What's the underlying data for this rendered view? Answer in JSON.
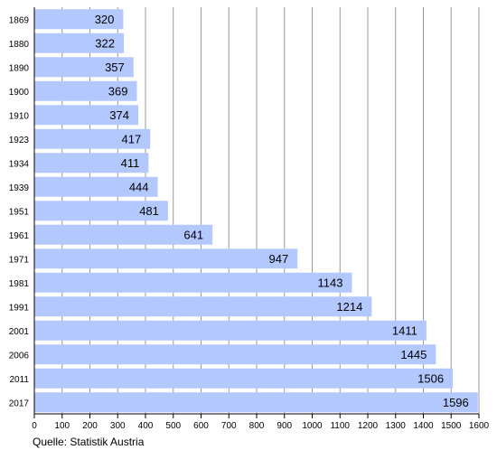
{
  "chart_data": {
    "type": "bar",
    "orientation": "horizontal",
    "categories": [
      "1869",
      "1880",
      "1890",
      "1900",
      "1910",
      "1923",
      "1934",
      "1939",
      "1951",
      "1961",
      "1971",
      "1981",
      "1991",
      "2001",
      "2006",
      "2011",
      "2017"
    ],
    "values": [
      320,
      322,
      357,
      369,
      374,
      417,
      411,
      444,
      481,
      641,
      947,
      1143,
      1214,
      1411,
      1445,
      1506,
      1596
    ],
    "title": "",
    "xlabel": "",
    "ylabel": "",
    "xlim": [
      0,
      1600
    ],
    "x_ticks": [
      0,
      100,
      200,
      300,
      400,
      500,
      600,
      700,
      800,
      900,
      1000,
      1100,
      1200,
      1300,
      1400,
      1500,
      1600
    ],
    "grid": "vertical",
    "data_labels": "inside-end",
    "bar_color": "#b3c8ff",
    "grid_color": "#999999"
  },
  "source_note": "Quelle: Statistik Austria"
}
